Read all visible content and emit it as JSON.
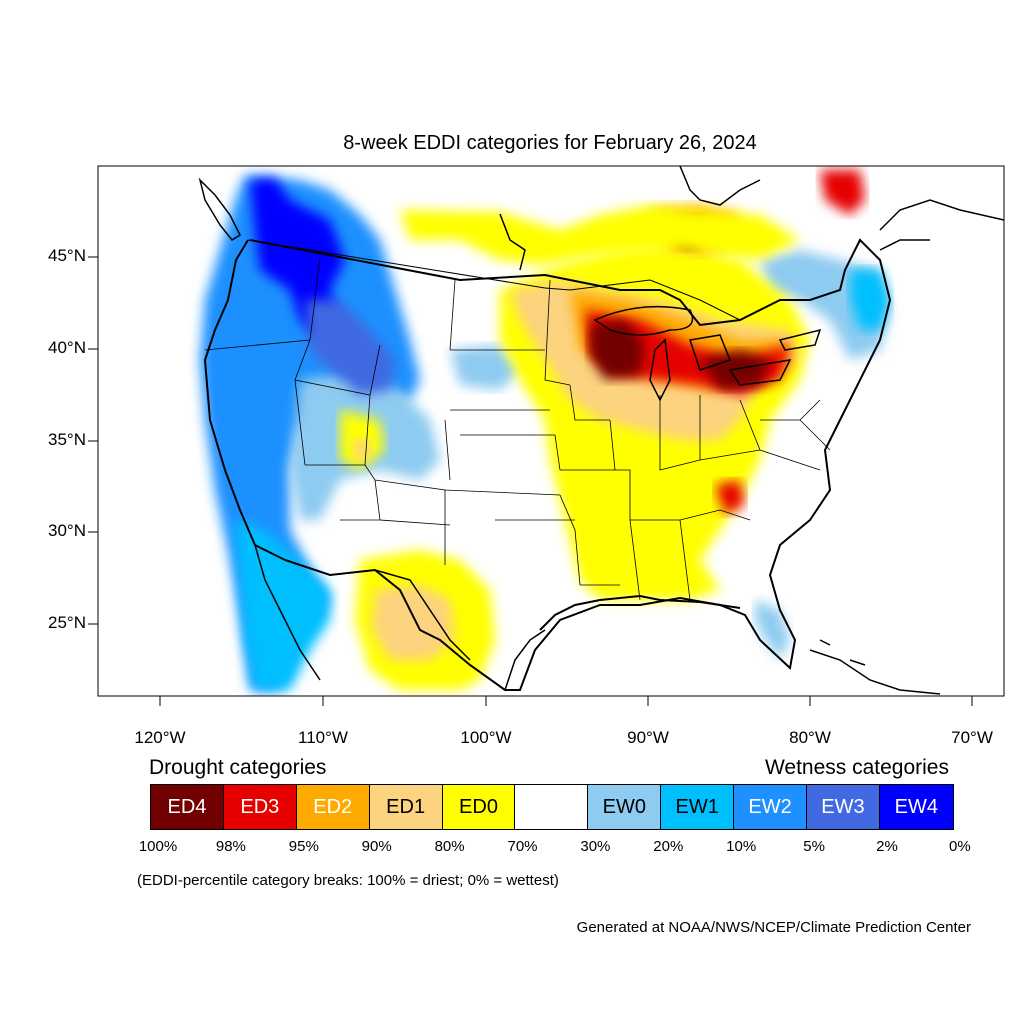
{
  "title": "8-week EDDI categories for February 26, 2024",
  "latitude_labels": [
    "45°N",
    "40°N",
    "35°N",
    "30°N",
    "25°N"
  ],
  "longitude_labels": [
    "120°W",
    "110°W",
    "100°W",
    "90°W",
    "80°W",
    "70°W"
  ],
  "legend": {
    "drought_heading": "Drought categories",
    "wetness_heading": "Wetness categories",
    "categories": [
      {
        "label": "ED4",
        "color": "#730000",
        "text_color": "#ffffff"
      },
      {
        "label": "ED3",
        "color": "#e60000",
        "text_color": "#ffffff"
      },
      {
        "label": "ED2",
        "color": "#ffaa00",
        "text_color": "#ffffff"
      },
      {
        "label": "ED1",
        "color": "#fcd37f",
        "text_color": "#000000"
      },
      {
        "label": "ED0",
        "color": "#ffff00",
        "text_color": "#000000"
      },
      {
        "label": "",
        "color": "#ffffff",
        "text_color": "#000000"
      },
      {
        "label": "EW0",
        "color": "#8ecbf0",
        "text_color": "#000000"
      },
      {
        "label": "EW1",
        "color": "#00bfff",
        "text_color": "#000000"
      },
      {
        "label": "EW2",
        "color": "#1e90ff",
        "text_color": "#ffffff"
      },
      {
        "label": "EW3",
        "color": "#4169e1",
        "text_color": "#ffffff"
      },
      {
        "label": "EW4",
        "color": "#0000ff",
        "text_color": "#ffffff"
      }
    ],
    "percentile_ticks": [
      "100%",
      "98%",
      "95%",
      "90%",
      "80%",
      "70%",
      "30%",
      "20%",
      "10%",
      "5%",
      "2%",
      "0%"
    ],
    "breaks_note": "(EDDI-percentile category breaks: 100% = driest; 0% = wettest)"
  },
  "credit": "Generated at NOAA/NWS/NCEP/Climate Prediction Center"
}
